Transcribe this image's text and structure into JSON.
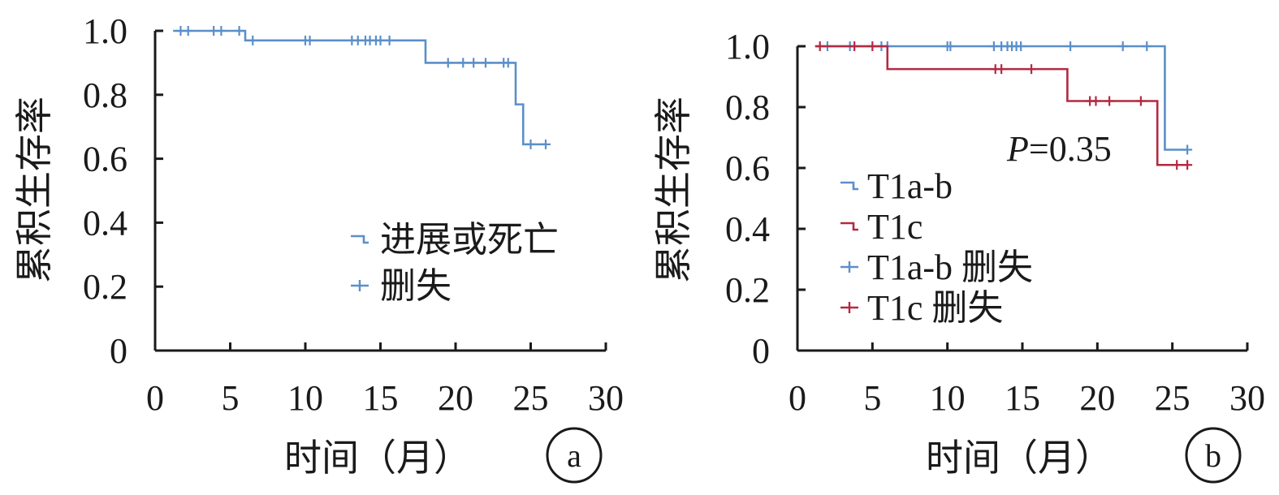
{
  "chart_data": [
    {
      "type": "line",
      "panel": "a",
      "xlabel": "时间（月）",
      "ylabel": "累积生存率",
      "xlim": [
        0,
        30
      ],
      "ylim": [
        0,
        1.0
      ],
      "x_ticks": [
        0,
        5,
        10,
        15,
        20,
        25,
        30
      ],
      "x_tick_labels": [
        "0",
        "5",
        "10",
        "15",
        "20",
        "25",
        "30"
      ],
      "y_ticks": [
        0,
        0.2,
        0.4,
        0.6,
        0.8,
        1.0
      ],
      "y_tick_labels": [
        "0",
        "0.2",
        "0.4",
        "0.6",
        "0.8",
        "1.0"
      ],
      "series": [
        {
          "name": "进展或死亡",
          "color": "#5b8fc9",
          "steps": [
            [
              1.2,
              1.0
            ],
            [
              6.0,
              0.97
            ],
            [
              18.0,
              0.9
            ],
            [
              24.0,
              0.77
            ],
            [
              24.5,
              0.645
            ],
            [
              26.0,
              0.645
            ]
          ],
          "censored": [
            [
              1.7,
              1.0
            ],
            [
              2.2,
              1.0
            ],
            [
              3.9,
              1.0
            ],
            [
              4.4,
              1.0
            ],
            [
              5.6,
              1.0
            ],
            [
              6.5,
              0.97
            ],
            [
              10.0,
              0.97
            ],
            [
              10.3,
              0.97
            ],
            [
              13.1,
              0.97
            ],
            [
              13.5,
              0.97
            ],
            [
              14.0,
              0.97
            ],
            [
              14.3,
              0.97
            ],
            [
              14.7,
              0.97
            ],
            [
              15.0,
              0.97
            ],
            [
              15.6,
              0.97
            ],
            [
              19.5,
              0.9
            ],
            [
              20.5,
              0.9
            ],
            [
              21.2,
              0.9
            ],
            [
              22.0,
              0.9
            ],
            [
              23.2,
              0.9
            ],
            [
              23.5,
              0.9
            ],
            [
              25.0,
              0.645
            ],
            [
              26.0,
              0.645
            ]
          ]
        }
      ],
      "legend": [
        {
          "label": "进展或死亡",
          "marker": "step",
          "color": "#5b8fc9"
        },
        {
          "label": "删失",
          "marker": "plus",
          "color": "#5b8fc9"
        }
      ],
      "legend_position": "right-center",
      "grid": false
    },
    {
      "type": "line",
      "panel": "b",
      "xlabel": "时间（月）",
      "ylabel": "累积生存率",
      "xlim": [
        0,
        30
      ],
      "ylim": [
        0,
        1.0
      ],
      "x_ticks": [
        0,
        5,
        10,
        15,
        20,
        25,
        30
      ],
      "x_tick_labels": [
        "0",
        "5",
        "10",
        "15",
        "20",
        "25",
        "30"
      ],
      "y_ticks": [
        0,
        0.2,
        0.4,
        0.6,
        0.8,
        1.0
      ],
      "y_tick_labels": [
        "0",
        "0.2",
        "0.4",
        "0.6",
        "0.8",
        "1.0"
      ],
      "annotation": {
        "p_italic": "P",
        "p_rest": "=0.35"
      },
      "series": [
        {
          "name": "T1a-b",
          "color": "#5b8fc9",
          "steps": [
            [
              1.2,
              1.0
            ],
            [
              24.5,
              0.66
            ],
            [
              26.0,
              0.66
            ]
          ],
          "censored": [
            [
              2.0,
              1.0
            ],
            [
              3.5,
              1.0
            ],
            [
              5.6,
              1.0
            ],
            [
              6.0,
              1.0
            ],
            [
              10.0,
              1.0
            ],
            [
              10.2,
              1.0
            ],
            [
              13.1,
              1.0
            ],
            [
              13.6,
              1.0
            ],
            [
              14.0,
              1.0
            ],
            [
              14.3,
              1.0
            ],
            [
              14.6,
              1.0
            ],
            [
              14.9,
              1.0
            ],
            [
              18.2,
              1.0
            ],
            [
              21.7,
              1.0
            ],
            [
              23.3,
              1.0
            ],
            [
              26.0,
              0.66
            ]
          ]
        },
        {
          "name": "T1c",
          "color": "#b22a44",
          "steps": [
            [
              1.2,
              1.0
            ],
            [
              6.0,
              0.925
            ],
            [
              18.0,
              0.82
            ],
            [
              24.0,
              0.61
            ],
            [
              26.0,
              0.61
            ]
          ],
          "censored": [
            [
              1.5,
              1.0
            ],
            [
              3.8,
              1.0
            ],
            [
              5.0,
              1.0
            ],
            [
              13.2,
              0.925
            ],
            [
              13.6,
              0.925
            ],
            [
              15.6,
              0.925
            ],
            [
              19.5,
              0.82
            ],
            [
              19.9,
              0.82
            ],
            [
              20.8,
              0.82
            ],
            [
              22.9,
              0.82
            ],
            [
              25.3,
              0.61
            ],
            [
              26.0,
              0.61
            ]
          ]
        }
      ],
      "legend": [
        {
          "label": "T1a-b",
          "marker": "step",
          "color": "#5b8fc9"
        },
        {
          "label": "T1c",
          "marker": "step",
          "color": "#b22a44"
        },
        {
          "label": "T1a-b 删失",
          "marker": "plus",
          "color": "#5b8fc9"
        },
        {
          "label": "T1c 删失",
          "marker": "plus",
          "color": "#b22a44"
        }
      ],
      "legend_position": "center-left",
      "grid": false
    }
  ]
}
